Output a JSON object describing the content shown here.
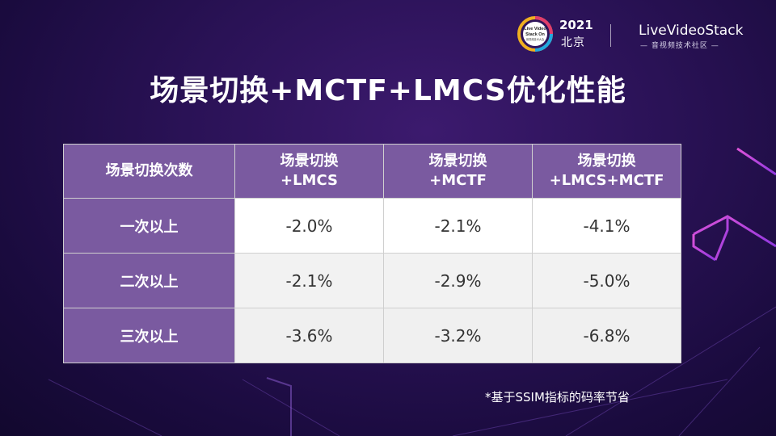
{
  "header": {
    "event_logo_text": [
      "Live Video",
      "Stack On",
      "音视频技术大会"
    ],
    "year": "2021",
    "city": "北京",
    "brand_name": "LiveVideoStack",
    "brand_sub": "— 音视频技术社区 —"
  },
  "title": "场景切换+MCTF+LMCS优化性能",
  "table": {
    "corner_header": "场景切换次数",
    "columns": [
      [
        "场景切换",
        "+LMCS"
      ],
      [
        "场景切换",
        "+MCTF"
      ],
      [
        "场景切换",
        "+LMCS+MCTF"
      ]
    ],
    "rows": [
      {
        "label": "一次以上",
        "values": [
          "-2.0%",
          "-2.1%",
          "-4.1%"
        ]
      },
      {
        "label": "二次以上",
        "values": [
          "-2.1%",
          "-2.9%",
          "-5.0%"
        ]
      },
      {
        "label": "三次以上",
        "values": [
          "-3.6%",
          "-3.2%",
          "-6.8%"
        ]
      }
    ]
  },
  "footnote": "*基于SSIM指标的码率节省",
  "colors": {
    "header_cell": "#7a5aa0",
    "background": "#2a1256",
    "neon": "#e04ad8"
  }
}
